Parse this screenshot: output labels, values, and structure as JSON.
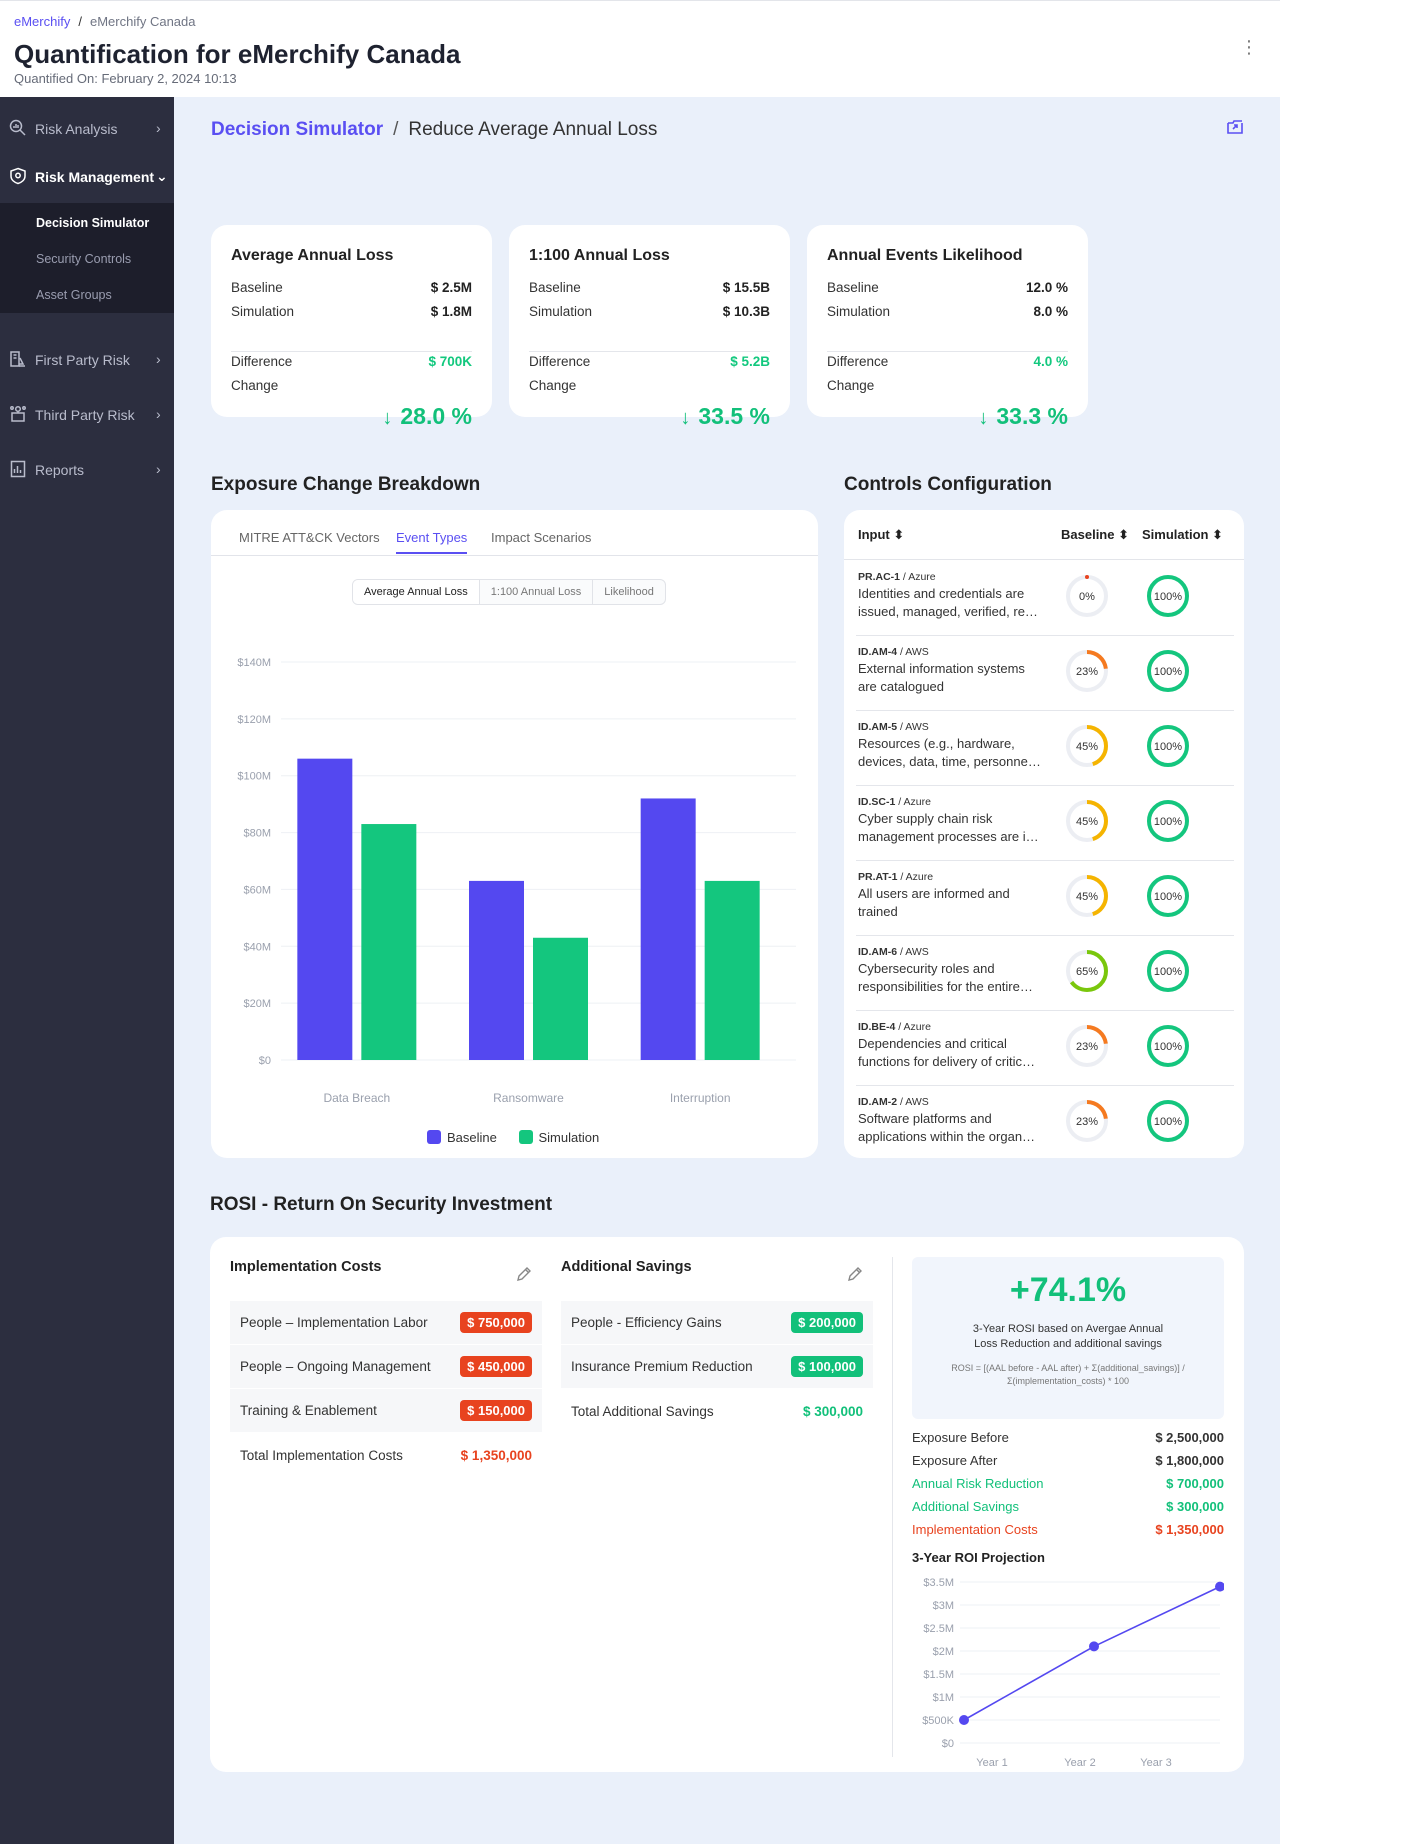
{
  "breadcrumb": {
    "root": "eMerchify",
    "sep": "/",
    "current": "eMerchify Canada"
  },
  "header": {
    "title": "Quantification for eMerchify Canada",
    "quantified_label": "Quantified On:",
    "quantified_date": "February 2, 2024 10:13",
    "menu": "⋮"
  },
  "sidebar": {
    "items": [
      {
        "label": "Risk Analysis",
        "icon": "search-chart-icon"
      },
      {
        "label": "Risk Management",
        "icon": "shield-icon"
      },
      {
        "label": "First Party Risk",
        "icon": "building-icon"
      },
      {
        "label": "Third Party Risk",
        "icon": "network-icon"
      },
      {
        "label": "Reports",
        "icon": "report-icon"
      }
    ],
    "sub": [
      "Decision Simulator",
      "Security Controls",
      "Asset Groups"
    ]
  },
  "page": {
    "bc_link": "Decision Simulator",
    "bc_sep": "/",
    "bc_current": "Reduce Average Annual Loss"
  },
  "metrics": [
    {
      "title": "Average Annual Loss",
      "baseline_label": "Baseline",
      "baseline": "$ 2.5M",
      "simulation_label": "Simulation",
      "simulation": "$ 1.8M",
      "difference_label": "Difference",
      "difference": "$ 700K",
      "change_label": "Change",
      "change": "28.0 %"
    },
    {
      "title": "1:100 Annual Loss",
      "baseline_label": "Baseline",
      "baseline": "$ 15.5B",
      "simulation_label": "Simulation",
      "simulation": "$ 10.3B",
      "difference_label": "Difference",
      "difference": "$ 5.2B",
      "change_label": "Change",
      "change": "33.5 %"
    },
    {
      "title": "Annual Events Likelihood",
      "baseline_label": "Baseline",
      "baseline": "12.0 %",
      "simulation_label": "Simulation",
      "simulation": "8.0 %",
      "difference_label": "Difference",
      "difference": "4.0 %",
      "change_label": "Change",
      "change": "33.3 %"
    }
  ],
  "exposure": {
    "title": "Exposure Change Breakdown",
    "tabs": [
      "MITRE ATT&CK Vectors",
      "Event Types",
      "Impact Scenarios"
    ],
    "segments": [
      "Average Annual Loss",
      "1:100 Annual Loss",
      "Likelihood"
    ]
  },
  "chart_data": [
    {
      "type": "bar",
      "title": "Exposure Change Breakdown - Event Types (Average Annual Loss)",
      "categories": [
        "Data Breach",
        "Ransomware",
        "Interruption"
      ],
      "series": [
        {
          "name": "Baseline",
          "color": "#5448f0",
          "values": [
            106,
            63,
            92
          ]
        },
        {
          "name": "Simulation",
          "color": "#14c67e",
          "values": [
            83,
            43,
            63
          ]
        }
      ],
      "ylim": [
        0,
        140
      ],
      "yticks": [
        "$0",
        "$20M",
        "$40M",
        "$60M",
        "$80M",
        "$100M",
        "$120M",
        "$140M"
      ],
      "ytick_values": [
        0,
        20,
        40,
        60,
        80,
        100,
        120,
        140
      ],
      "xlabel": "",
      "ylabel": "",
      "legend": "bottom"
    },
    {
      "type": "line",
      "title": "3-Year ROI Projection",
      "x": [
        "Year 1",
        "Year 2",
        "Year 3"
      ],
      "series": [
        {
          "name": "ROI",
          "color": "#5448f0",
          "values": [
            0.5,
            2.1,
            3.4
          ]
        }
      ],
      "ylim": [
        0,
        3.5
      ],
      "yticks": [
        "$0",
        "$500K",
        "$1M",
        "$1.5M",
        "$2M",
        "$2.5M",
        "$3M",
        "$3.5M"
      ],
      "ytick_values": [
        0,
        0.5,
        1,
        1.5,
        2,
        2.5,
        3,
        3.5
      ]
    }
  ],
  "controls": {
    "title": "Controls Configuration",
    "headers": {
      "input": "Input ⬍",
      "baseline": "Baseline ⬍",
      "simulation": "Simulation ⬍"
    },
    "rows": [
      {
        "code": "PR.AC-1",
        "platform": " / Azure",
        "desc": "Identities and credentials are issued, managed, verified, re…",
        "baseline": 0,
        "baseline_label": "0%",
        "simulation": 100,
        "simulation_label": "100%"
      },
      {
        "code": "ID.AM-4",
        "platform": " / AWS",
        "desc": "External information systems are catalogued",
        "baseline": 23,
        "baseline_label": "23%",
        "simulation": 100,
        "simulation_label": "100%"
      },
      {
        "code": "ID.AM-5",
        "platform": " / AWS",
        "desc": "Resources (e.g., hardware, devices, data, time, personne…",
        "baseline": 45,
        "baseline_label": "45%",
        "simulation": 100,
        "simulation_label": "100%"
      },
      {
        "code": "ID.SC-1",
        "platform": " / Azure",
        "desc": "Cyber supply chain risk management processes are i…",
        "baseline": 45,
        "baseline_label": "45%",
        "simulation": 100,
        "simulation_label": "100%"
      },
      {
        "code": "PR.AT-1",
        "platform": " / Azure",
        "desc": "All users are informed and trained",
        "baseline": 45,
        "baseline_label": "45%",
        "simulation": 100,
        "simulation_label": "100%"
      },
      {
        "code": "ID.AM-6",
        "platform": " / AWS",
        "desc": "Cybersecurity roles and responsibilities for the entire…",
        "baseline": 65,
        "baseline_label": "65%",
        "simulation": 100,
        "simulation_label": "100%"
      },
      {
        "code": "ID.BE-4",
        "platform": " / Azure",
        "desc": "Dependencies and critical functions for delivery of critic…",
        "baseline": 23,
        "baseline_label": "23%",
        "simulation": 100,
        "simulation_label": "100%"
      },
      {
        "code": "ID.AM-2",
        "platform": " / AWS",
        "desc": "Software platforms and applications within the organ…",
        "baseline": 23,
        "baseline_label": "23%",
        "simulation": 100,
        "simulation_label": "100%"
      }
    ]
  },
  "rosi": {
    "title": "ROSI - Return On Security Investment",
    "impl": {
      "title": "Implementation Costs",
      "items": [
        {
          "label": "People – Implementation Labor",
          "value": "$ 750,000"
        },
        {
          "label": "People – Ongoing Management",
          "value": "$ 450,000"
        },
        {
          "label": "Training & Enablement",
          "value": "$ 150,000"
        }
      ],
      "total_label": "Total Implementation Costs",
      "total": "$ 1,350,000"
    },
    "savings": {
      "title": "Additional Savings",
      "items": [
        {
          "label": "People - Efficiency Gains",
          "value": "$ 200,000"
        },
        {
          "label": "Insurance Premium Reduction",
          "value": "$ 100,000"
        }
      ],
      "total_label": "Total Additional Savings",
      "total": "$ 300,000"
    },
    "pct": "+74.1%",
    "caption": "3-Year ROSI based on Avergae Annual Loss Reduction and additional savings",
    "formula": "ROSI = [(AAL before - AAL after) + Σ(additional_savings)] / Σ(implementation_costs) * 100",
    "summary": [
      {
        "label": "Exposure Before",
        "value": "$ 2,500,000",
        "tone": ""
      },
      {
        "label": "Exposure After",
        "value": "$ 1,800,000",
        "tone": ""
      },
      {
        "label": "Annual Risk Reduction",
        "value": "$ 700,000",
        "tone": "g"
      },
      {
        "label": "Additional Savings",
        "value": "$ 300,000",
        "tone": "g"
      },
      {
        "label": "Implementation Costs",
        "value": "$ 1,350,000",
        "tone": "r"
      }
    ],
    "proj_title": "3-Year ROI Projection"
  },
  "colors": {
    "accent": "#5a4ff2",
    "green": "#12c07a",
    "red": "#e8431f",
    "sidebar": "#2c2e3f"
  }
}
